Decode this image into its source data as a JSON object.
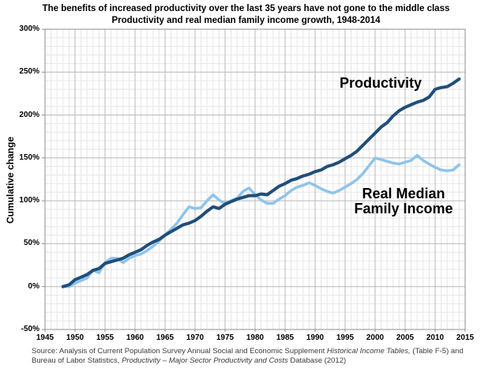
{
  "page": {
    "title_line1": "The benefits of increased productivity over the last 35 years have not gone to the middle class",
    "title_line2": "Productivity and real median family income growth, 1948-2014"
  },
  "colors": {
    "productivity_line": "#1F4E79",
    "income_line": "#8EC4EC",
    "grid_minor": "#E6E6E6",
    "grid_major": "#B8B8B8",
    "plot_border": "#8F8F8F",
    "text": "#000000",
    "source_text": "#3c3c3c"
  },
  "labels": {
    "productivity": "Productivity",
    "income_line1": "Real Median",
    "income_line2": "Family Income"
  },
  "chart_data": {
    "type": "line",
    "title": "The benefits of increased productivity over the last 35 years have not gone to the middle class",
    "subtitle": "Productivity and real median family income growth, 1948-2014",
    "xlabel": "",
    "ylabel": "Cumulative change",
    "xlim": [
      1945,
      2015
    ],
    "ylim": [
      -50,
      300
    ],
    "grid": "minor: every year / every 10%; major: every 5 years / every 50%",
    "legend_position": "in-plot text annotations",
    "x_ticks": [
      1945,
      1950,
      1955,
      1960,
      1965,
      1970,
      1975,
      1980,
      1985,
      1990,
      1995,
      2000,
      2005,
      2010,
      2015
    ],
    "x_tick_labels": [
      "1945",
      "1950",
      "1955",
      "1960",
      "1965",
      "1970",
      "1975",
      "1980",
      "1985",
      "1990",
      "1995",
      "2000",
      "2005",
      "2010",
      "2015"
    ],
    "y_ticks": [
      300,
      250,
      200,
      150,
      100,
      50,
      0,
      -50
    ],
    "y_tick_labels": [
      "300%",
      "250%",
      "200%",
      "150%",
      "100%",
      "50%",
      "0%",
      "-50%"
    ],
    "x": [
      1948,
      1949,
      1950,
      1951,
      1952,
      1953,
      1954,
      1955,
      1956,
      1957,
      1958,
      1959,
      1960,
      1961,
      1962,
      1963,
      1964,
      1965,
      1966,
      1967,
      1968,
      1969,
      1970,
      1971,
      1972,
      1973,
      1974,
      1975,
      1976,
      1977,
      1978,
      1979,
      1980,
      1981,
      1982,
      1983,
      1984,
      1985,
      1986,
      1987,
      1988,
      1989,
      1990,
      1991,
      1992,
      1993,
      1994,
      1995,
      1996,
      1997,
      1998,
      1999,
      2000,
      2001,
      2002,
      2003,
      2004,
      2005,
      2006,
      2007,
      2008,
      2009,
      2010,
      2011,
      2012,
      2013,
      2014
    ],
    "unit": "percent cumulative change since 1948",
    "series": [
      {
        "name": "Productivity",
        "color": "#1F4E79",
        "stroke_width": 4,
        "values": [
          0,
          2,
          8,
          11,
          14,
          19,
          21,
          27,
          29,
          31,
          33,
          37,
          40,
          43,
          48,
          52,
          55,
          60,
          64,
          68,
          72,
          74,
          77,
          82,
          88,
          93,
          91,
          96,
          99,
          102,
          104,
          106,
          106,
          108,
          107,
          112,
          117,
          120,
          124,
          126,
          129,
          131,
          134,
          136,
          140,
          142,
          145,
          149,
          153,
          158,
          165,
          172,
          179,
          186,
          191,
          199,
          205,
          209,
          212,
          215,
          217,
          221,
          230,
          232,
          233,
          237,
          242
        ]
      },
      {
        "name": "Real Median Family Income",
        "color": "#8EC4EC",
        "stroke_width": 3.5,
        "values": [
          0,
          0,
          4,
          7,
          10,
          19,
          16,
          28,
          33,
          33,
          28,
          33,
          36,
          38,
          42,
          47,
          53,
          60,
          67,
          74,
          84,
          93,
          91,
          92,
          100,
          107,
          101,
          97,
          100,
          103,
          111,
          115,
          107,
          101,
          97,
          97,
          102,
          106,
          112,
          116,
          118,
          121,
          118,
          114,
          111,
          109,
          112,
          116,
          120,
          125,
          132,
          141,
          150,
          148,
          146,
          144,
          143,
          145,
          147,
          153,
          147,
          143,
          139,
          136,
          135,
          136,
          142
        ]
      }
    ],
    "annotations": [
      {
        "text": "Productivity",
        "x": 1999,
        "y": 215,
        "align": "center"
      },
      {
        "text": "Real Median\nFamily Income",
        "x": 2003,
        "y": 112,
        "align": "center"
      }
    ]
  },
  "source": {
    "lines": [
      [
        {
          "text": "Source:  Analysis of Current Population Survey Annual Social and Economic Supplement ",
          "italic": false
        },
        {
          "text": "Historical Income Tables,",
          "italic": true
        },
        {
          "text": " (Table F-5) and",
          "italic": false
        }
      ],
      [
        {
          "text": "Bureau of Labor Statistics, ",
          "italic": false
        },
        {
          "text": "Productivity – Major Sector Productivity and Costs",
          "italic": true
        },
        {
          "text": " Database (2012)",
          "italic": false
        }
      ]
    ]
  }
}
